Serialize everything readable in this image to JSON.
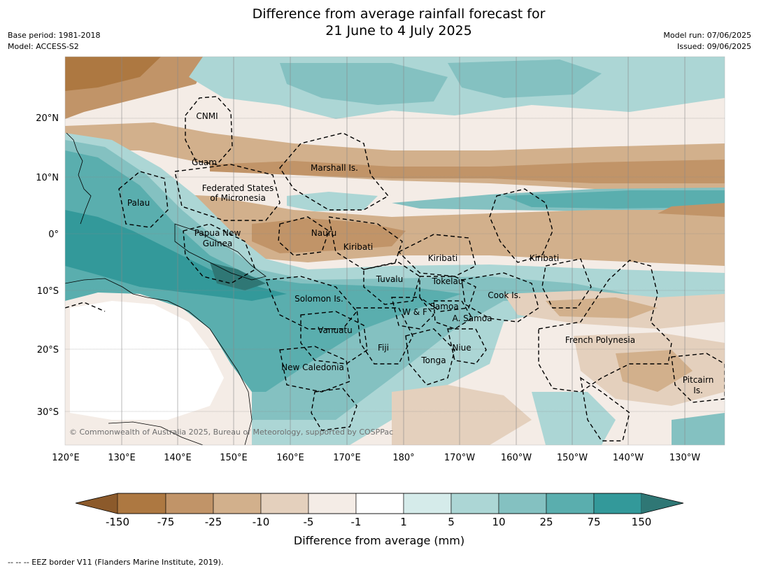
{
  "title_line1": "Difference from average rainfall forecast for",
  "title_line2": "21 June to 4 July 2025",
  "base_period": "Base period: 1981-2018",
  "model": "Model: ACCESS-S2",
  "model_run": "Model run: 07/06/2025",
  "issued": "Issued: 09/06/2025",
  "copyright": "© Commonwealth of Australia 2025, Bureau of Meteorology, supported by COSPPac",
  "footer": "--  --  -- EEZ border V11 (Flanders Marine Institute, 2019).",
  "lat_ticks": [
    "20°N",
    "10°N",
    "0°",
    "10°S",
    "20°S",
    "30°S"
  ],
  "lon_ticks": [
    "120°E",
    "130°E",
    "140°E",
    "150°E",
    "160°E",
    "170°E",
    "180°",
    "170°W",
    "160°W",
    "150°W",
    "140°W",
    "130°W"
  ],
  "places": {
    "cnmi": "CNMI",
    "guam": "Guam",
    "marshall": "Marshall Is.",
    "fsm1": "Federated States",
    "fsm2": "of Micronesia",
    "palau": "Palau",
    "png1": "Papua New",
    "png2": "Guinea",
    "nauru": "Nauru",
    "kiribati_w": "Kiribati",
    "kiribati_c": "Kiribati",
    "kiribati_e": "Kiribati",
    "tuvalu": "Tuvalu",
    "tokelau": "Tokelau",
    "solomon": "Solomon Is.",
    "wf": "W & F",
    "samoa": "Samoa",
    "asamoa": "A. Samoa",
    "cook": "Cook Is.",
    "vanuatu": "Vanuatu",
    "fiji": "Fiji",
    "niue": "Niue",
    "tonga": "Tonga",
    "frpoly": "French Polynesia",
    "newcal": "New Caledonia",
    "pitcairn1": "Pitcairn",
    "pitcairn2": "Is."
  },
  "colorbar": {
    "label": "Difference from average (mm)",
    "ticks": [
      "-150",
      "-75",
      "-25",
      "-10",
      "-5",
      "-1",
      "1",
      "5",
      "10",
      "25",
      "75",
      "150"
    ],
    "colors": [
      "#8c5a2b",
      "#ad7841",
      "#c19468",
      "#d2b08c",
      "#e4d0bd",
      "#f4ece6",
      "#ffffff",
      "#d5ebea",
      "#acd6d5",
      "#84c1c1",
      "#5aaeae",
      "#33999a",
      "#2f7775"
    ]
  }
}
